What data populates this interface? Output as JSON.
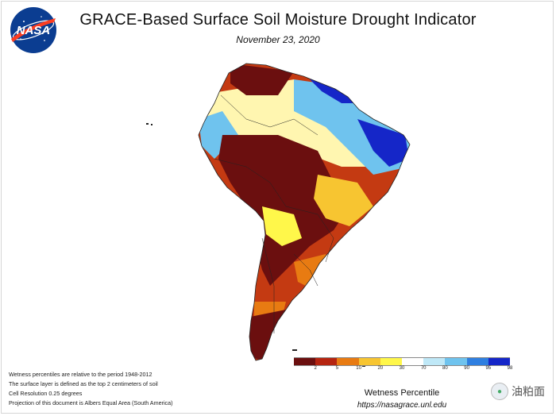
{
  "header": {
    "title": "GRACE-Based Surface Soil Moisture Drought Indicator",
    "date": "November 23, 2020"
  },
  "logo": {
    "text": "NASA",
    "bg_color": "#0b3d91",
    "accent_color": "#fc3d21"
  },
  "notes": [
    "Wetness percentiles are relative to the period 1948-2012",
    "The surface layer is defined as the top 2 centimeters of soil",
    "Cell Resolution 0.25 degrees",
    "Projection of this document is Albers Equal Area (South America)"
  ],
  "legend": {
    "title": "Wetness Percentile",
    "colors": [
      "#6b0f0f",
      "#b52410",
      "#e87b12",
      "#f7c531",
      "#fff74a",
      "#ffffff",
      "#bfe8f7",
      "#6fc3ee",
      "#2f7fe0",
      "#1526c8"
    ],
    "ticks": [
      "2",
      "5",
      "10",
      "20",
      "30",
      "70",
      "80",
      "90",
      "95",
      "98"
    ]
  },
  "footer": {
    "url": "https://nasagrace.unl.edu"
  },
  "watermark": {
    "text": "油粕面"
  },
  "map": {
    "region": "South America",
    "colors": {
      "very_dry": "#6b0f0f",
      "dry": "#b52410",
      "moderate": "#e87b12",
      "abnormal": "#f7c531",
      "normal": "#fff6b0",
      "wet": "#6fc3ee",
      "very_wet": "#1526c8",
      "water": "#ffffff",
      "border": "#222222"
    }
  }
}
